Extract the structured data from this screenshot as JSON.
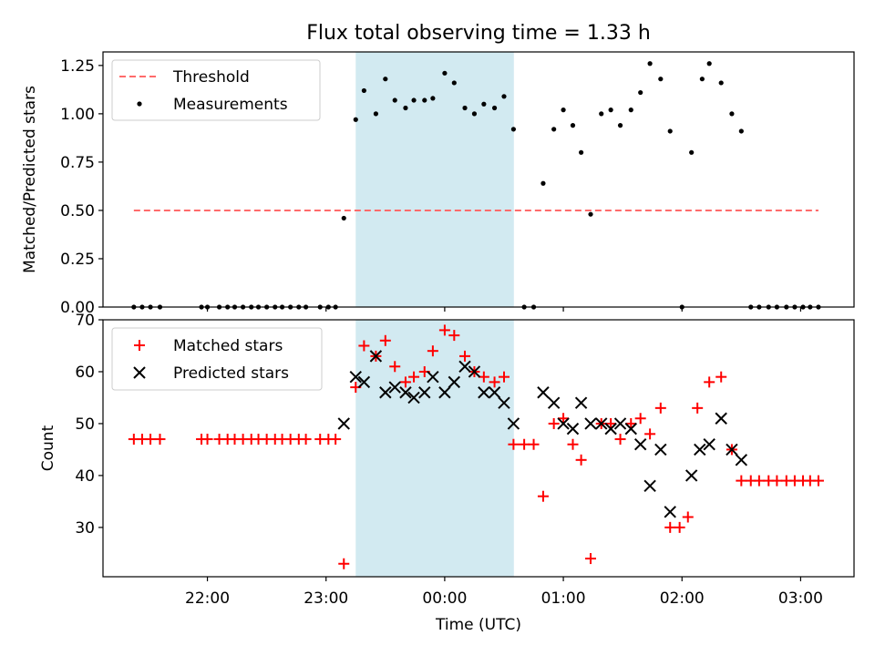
{
  "title": "Flux total observing time = 1.33 h",
  "xlabel": "Time (UTC)",
  "xticks": [
    {
      "label": "22:00",
      "t": -2.0
    },
    {
      "label": "23:00",
      "t": -1.0
    },
    {
      "label": "00:00",
      "t": 0.0
    },
    {
      "label": "01:00",
      "t": 1.0
    },
    {
      "label": "02:00",
      "t": 2.0
    },
    {
      "label": "03:00",
      "t": 3.0
    }
  ],
  "shaded_region": {
    "from": -0.75,
    "to": 0.583,
    "color": "#add8e6"
  },
  "colors": {
    "threshold": "#ff6b6b",
    "measurements": "#000000",
    "matched": "#ff0000",
    "predicted": "#000000"
  },
  "chart_data": [
    {
      "type": "scatter",
      "ylabel": "Matched/Predicted stars",
      "ylim": [
        0,
        1.32
      ],
      "yticks": [
        "0.00",
        "0.25",
        "0.50",
        "0.75",
        "1.00",
        "1.25"
      ],
      "xlim": [
        -2.88,
        3.45
      ],
      "legend": "top-left",
      "threshold": {
        "name": "Threshold",
        "value": 0.5,
        "x_range": [
          -2.62,
          3.15
        ]
      },
      "series": [
        {
          "name": "Measurements",
          "points": [
            [
              -2.62,
              0
            ],
            [
              -2.55,
              0
            ],
            [
              -2.48,
              0
            ],
            [
              -2.4,
              0
            ],
            [
              -2.05,
              0
            ],
            [
              -2.0,
              0
            ],
            [
              -1.9,
              0
            ],
            [
              -1.83,
              0
            ],
            [
              -1.77,
              0
            ],
            [
              -1.7,
              0
            ],
            [
              -1.63,
              0
            ],
            [
              -1.57,
              0
            ],
            [
              -1.5,
              0
            ],
            [
              -1.43,
              0
            ],
            [
              -1.37,
              0
            ],
            [
              -1.3,
              0
            ],
            [
              -1.23,
              0
            ],
            [
              -1.17,
              0
            ],
            [
              -1.05,
              0
            ],
            [
              -0.98,
              0
            ],
            [
              -0.92,
              0
            ],
            [
              -0.85,
              0.46
            ],
            [
              -0.75,
              0.97
            ],
            [
              -0.68,
              1.12
            ],
            [
              -0.58,
              1.0
            ],
            [
              -0.5,
              1.18
            ],
            [
              -0.42,
              1.07
            ],
            [
              -0.33,
              1.03
            ],
            [
              -0.26,
              1.07
            ],
            [
              -0.17,
              1.07
            ],
            [
              -0.1,
              1.08
            ],
            [
              0.0,
              1.21
            ],
            [
              0.08,
              1.16
            ],
            [
              0.17,
              1.03
            ],
            [
              0.25,
              1.0
            ],
            [
              0.33,
              1.05
            ],
            [
              0.42,
              1.03
            ],
            [
              0.5,
              1.09
            ],
            [
              0.58,
              0.92
            ],
            [
              0.67,
              0
            ],
            [
              0.75,
              0
            ],
            [
              0.83,
              0.64
            ],
            [
              0.92,
              0.92
            ],
            [
              1.0,
              1.02
            ],
            [
              1.08,
              0.94
            ],
            [
              1.15,
              0.8
            ],
            [
              1.23,
              0.48
            ],
            [
              1.32,
              1.0
            ],
            [
              1.4,
              1.02
            ],
            [
              1.48,
              0.94
            ],
            [
              1.57,
              1.02
            ],
            [
              1.65,
              1.11
            ],
            [
              1.73,
              1.26
            ],
            [
              1.82,
              1.18
            ],
            [
              1.9,
              0.91
            ],
            [
              2.0,
              0
            ],
            [
              2.08,
              0.8
            ],
            [
              2.17,
              1.18
            ],
            [
              2.23,
              1.26
            ],
            [
              2.33,
              1.16
            ],
            [
              2.42,
              1.0
            ],
            [
              2.5,
              0.91
            ],
            [
              2.58,
              0
            ],
            [
              2.65,
              0
            ],
            [
              2.73,
              0
            ],
            [
              2.8,
              0
            ],
            [
              2.88,
              0
            ],
            [
              2.95,
              0
            ],
            [
              3.02,
              0
            ],
            [
              3.08,
              0
            ],
            [
              3.15,
              0
            ]
          ]
        }
      ]
    },
    {
      "type": "scatter",
      "ylabel": "Count",
      "ylim": [
        20.5,
        70
      ],
      "yticks": [
        "30",
        "40",
        "50",
        "60",
        "70"
      ],
      "xlim": [
        -2.88,
        3.45
      ],
      "legend": "top-left",
      "series": [
        {
          "name": "Matched stars",
          "points": [
            [
              -2.62,
              47
            ],
            [
              -2.55,
              47
            ],
            [
              -2.48,
              47
            ],
            [
              -2.4,
              47
            ],
            [
              -2.05,
              47
            ],
            [
              -2.0,
              47
            ],
            [
              -1.9,
              47
            ],
            [
              -1.83,
              47
            ],
            [
              -1.77,
              47
            ],
            [
              -1.7,
              47
            ],
            [
              -1.63,
              47
            ],
            [
              -1.57,
              47
            ],
            [
              -1.5,
              47
            ],
            [
              -1.43,
              47
            ],
            [
              -1.37,
              47
            ],
            [
              -1.3,
              47
            ],
            [
              -1.23,
              47
            ],
            [
              -1.17,
              47
            ],
            [
              -1.05,
              47
            ],
            [
              -0.98,
              47
            ],
            [
              -0.92,
              47
            ],
            [
              -0.85,
              23
            ],
            [
              -0.75,
              57
            ],
            [
              -0.68,
              65
            ],
            [
              -0.58,
              63
            ],
            [
              -0.5,
              66
            ],
            [
              -0.42,
              61
            ],
            [
              -0.33,
              58
            ],
            [
              -0.26,
              59
            ],
            [
              -0.17,
              60
            ],
            [
              -0.1,
              64
            ],
            [
              0.0,
              68
            ],
            [
              0.08,
              67
            ],
            [
              0.17,
              63
            ],
            [
              0.25,
              60
            ],
            [
              0.33,
              59
            ],
            [
              0.42,
              58
            ],
            [
              0.5,
              59
            ],
            [
              0.58,
              46
            ],
            [
              0.67,
              46
            ],
            [
              0.75,
              46
            ],
            [
              0.83,
              36
            ],
            [
              0.92,
              50
            ],
            [
              1.0,
              51
            ],
            [
              1.08,
              46
            ],
            [
              1.15,
              43
            ],
            [
              1.23,
              24
            ],
            [
              1.32,
              50
            ],
            [
              1.4,
              50
            ],
            [
              1.48,
              47
            ],
            [
              1.57,
              50
            ],
            [
              1.65,
              51
            ],
            [
              1.73,
              48
            ],
            [
              1.82,
              53
            ],
            [
              1.9,
              30
            ],
            [
              1.98,
              30
            ],
            [
              2.05,
              32
            ],
            [
              2.13,
              53
            ],
            [
              2.23,
              58
            ],
            [
              2.33,
              59
            ],
            [
              2.42,
              45
            ],
            [
              2.5,
              39
            ],
            [
              2.58,
              39
            ],
            [
              2.65,
              39
            ],
            [
              2.73,
              39
            ],
            [
              2.8,
              39
            ],
            [
              2.88,
              39
            ],
            [
              2.95,
              39
            ],
            [
              3.02,
              39
            ],
            [
              3.08,
              39
            ],
            [
              3.15,
              39
            ]
          ]
        },
        {
          "name": "Predicted stars",
          "points": [
            [
              -0.85,
              50
            ],
            [
              -0.75,
              59
            ],
            [
              -0.68,
              58
            ],
            [
              -0.58,
              63
            ],
            [
              -0.5,
              56
            ],
            [
              -0.42,
              57
            ],
            [
              -0.33,
              56
            ],
            [
              -0.26,
              55
            ],
            [
              -0.17,
              56
            ],
            [
              -0.1,
              59
            ],
            [
              0.0,
              56
            ],
            [
              0.08,
              58
            ],
            [
              0.17,
              61
            ],
            [
              0.25,
              60
            ],
            [
              0.33,
              56
            ],
            [
              0.42,
              56
            ],
            [
              0.5,
              54
            ],
            [
              0.58,
              50
            ],
            [
              0.83,
              56
            ],
            [
              0.92,
              54
            ],
            [
              1.0,
              50
            ],
            [
              1.08,
              49
            ],
            [
              1.15,
              54
            ],
            [
              1.23,
              50
            ],
            [
              1.32,
              50
            ],
            [
              1.4,
              49
            ],
            [
              1.48,
              50
            ],
            [
              1.57,
              49
            ],
            [
              1.65,
              46
            ],
            [
              1.73,
              38
            ],
            [
              1.82,
              45
            ],
            [
              1.9,
              33
            ],
            [
              2.08,
              40
            ],
            [
              2.15,
              45
            ],
            [
              2.23,
              46
            ],
            [
              2.33,
              51
            ],
            [
              2.42,
              45
            ],
            [
              2.5,
              43
            ]
          ]
        }
      ]
    }
  ]
}
